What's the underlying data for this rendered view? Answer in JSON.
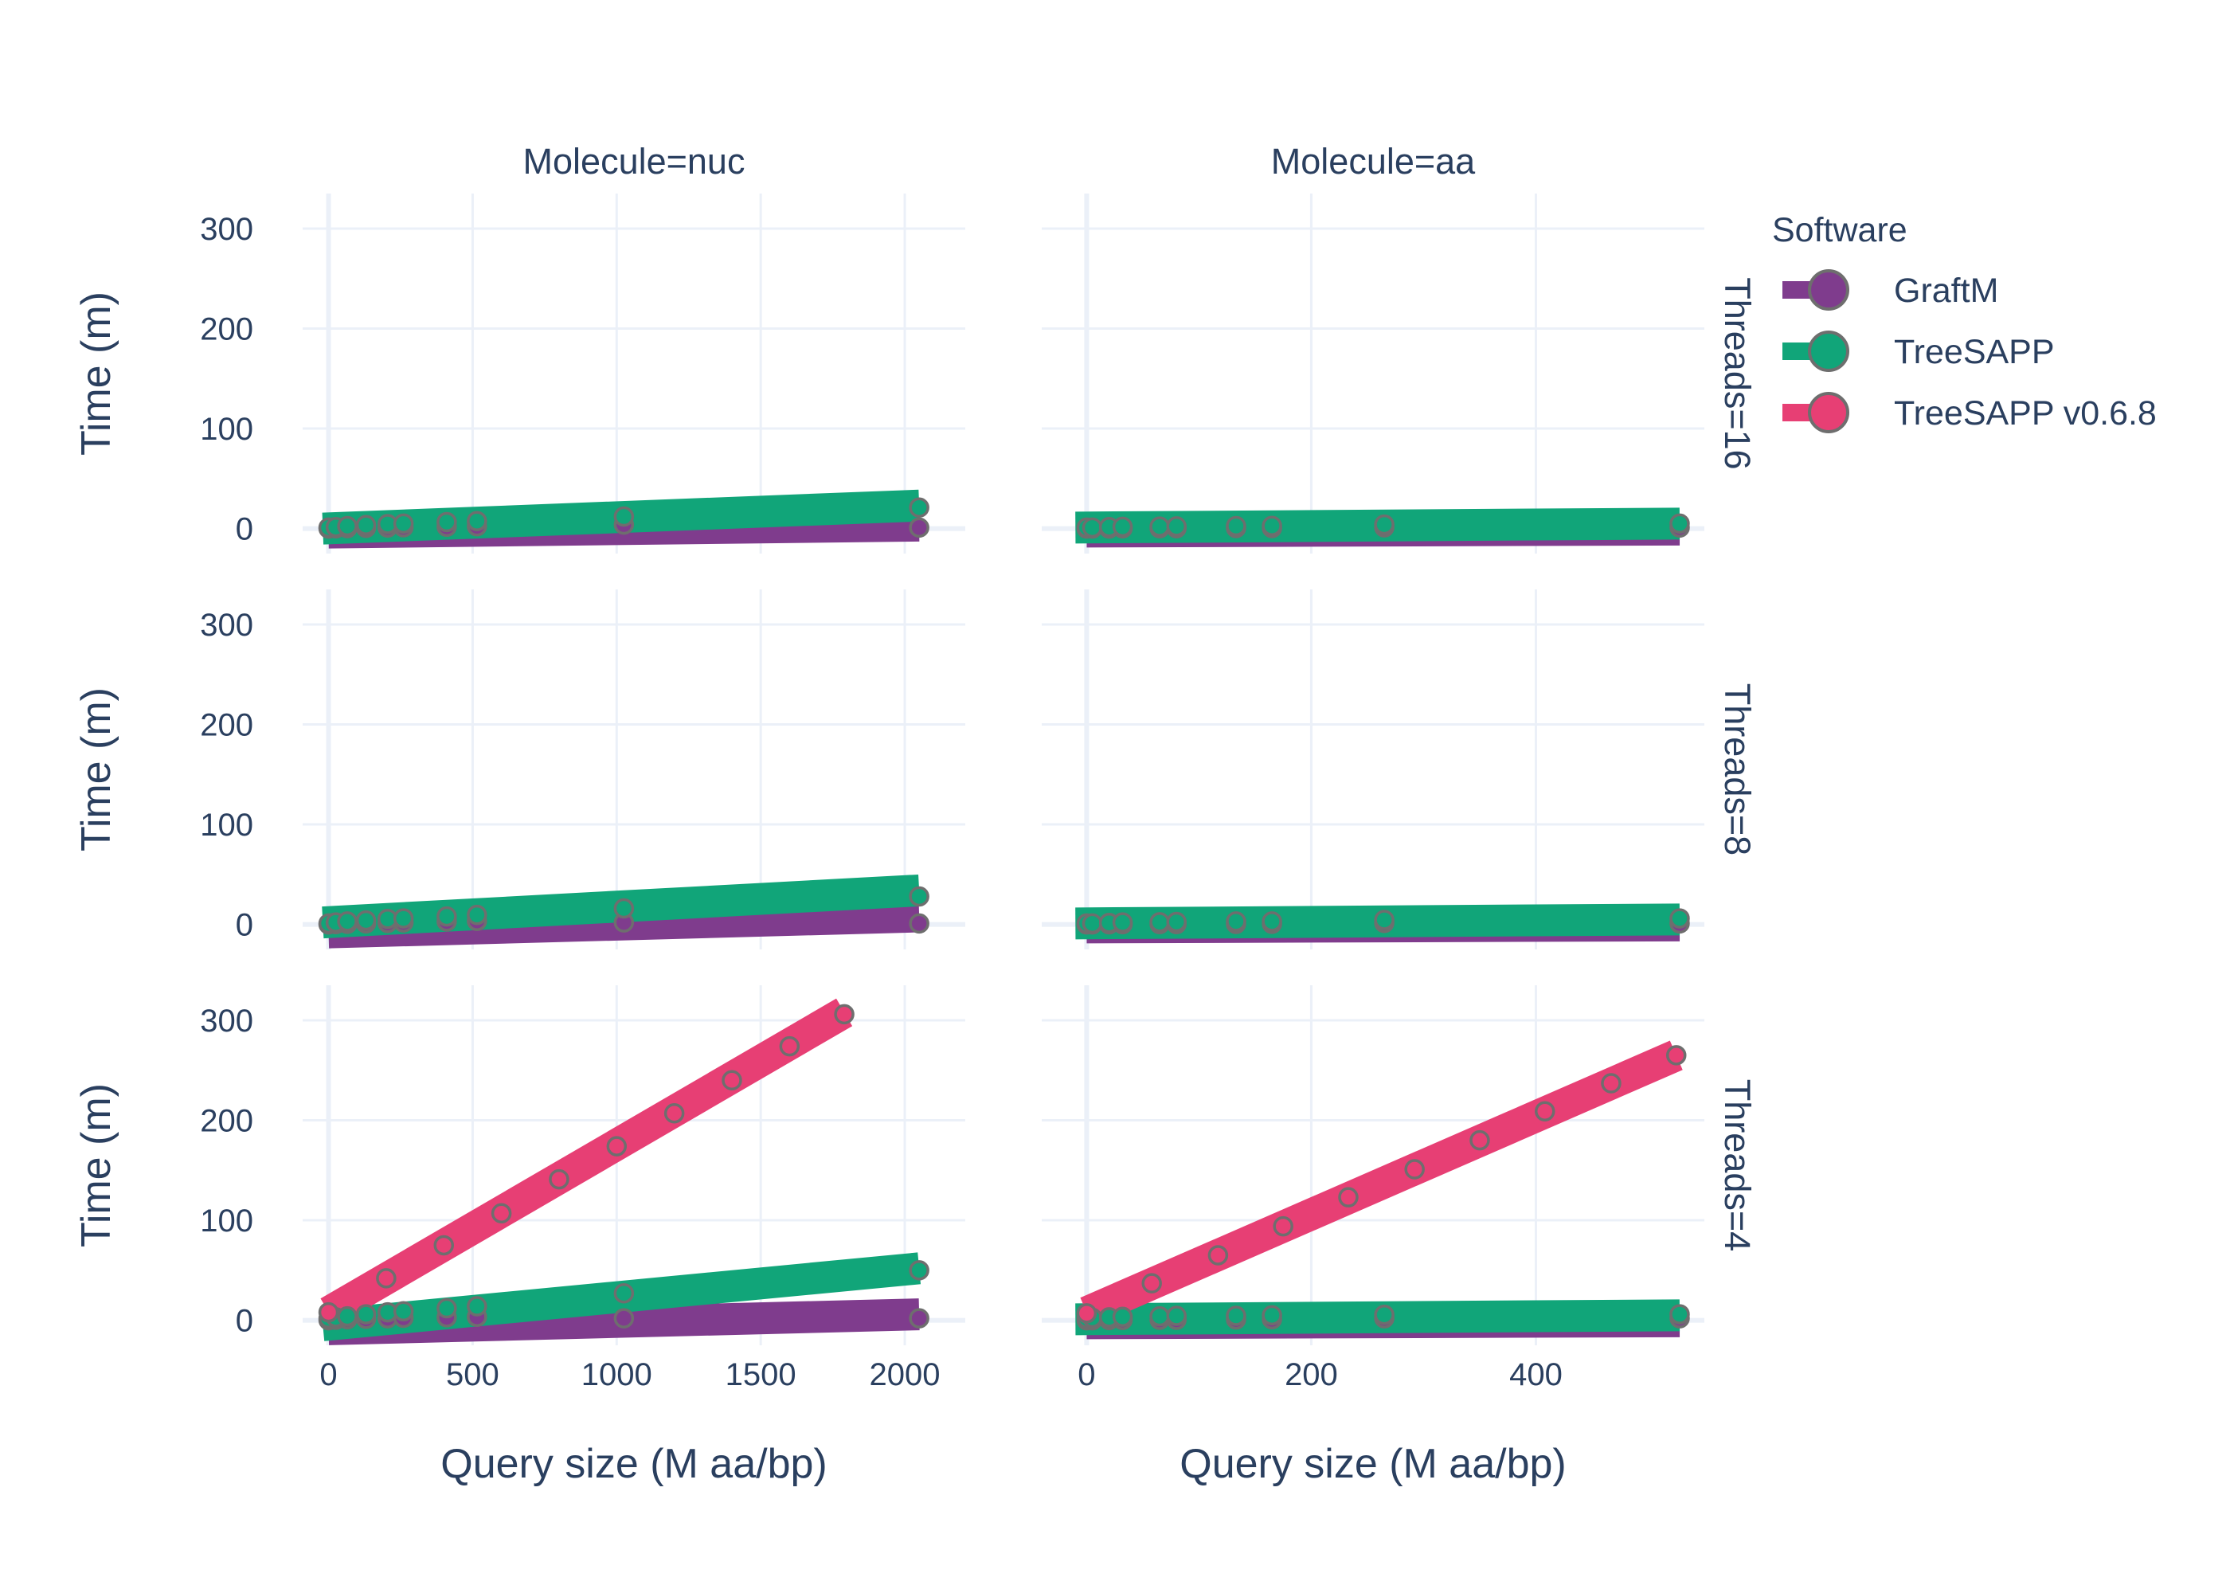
{
  "chart_data": {
    "type": "line",
    "legend": {
      "title": "Software",
      "placement": "top-right",
      "items": [
        {
          "name": "GraftM",
          "color": "#7f3c8d"
        },
        {
          "name": "TreeSAPP",
          "color": "#11a579"
        },
        {
          "name": "TreeSAPP v0.6.8",
          "color": "#e73f74"
        }
      ]
    },
    "marker_outline_color": "#6e6e6e",
    "y_axis_title": "Time (m)",
    "x_axis_title": "Query size (M aa/bp)",
    "ylim": [
      -25,
      335
    ],
    "yticks": [
      0,
      100,
      200,
      300
    ],
    "grid": true,
    "columns": [
      {
        "title": "Molecule=nuc",
        "xlim": [
          -90,
          2210
        ],
        "xticks": [
          0,
          500,
          1000,
          1500,
          2000
        ]
      },
      {
        "title": "Molecule=aa",
        "xlim": [
          -40,
          550
        ],
        "xticks": [
          0,
          200,
          400
        ]
      }
    ],
    "rows": [
      {
        "title": "Threads=16"
      },
      {
        "title": "Threads=8"
      },
      {
        "title": "Threads=4"
      }
    ],
    "panels": [
      {
        "row": 0,
        "col": 0,
        "series": [
          {
            "name": "GraftM",
            "x": [
              0,
              25,
              65,
              130,
              205,
              260,
              410,
              515,
              1025,
              2050
            ],
            "y": [
              0,
              0.2,
              0.4,
              0.7,
              1,
              1.3,
              1.8,
              2.3,
              4,
              1
            ],
            "fit": [
              [
                0,
                -4
              ],
              [
                2050,
                3
              ]
            ]
          },
          {
            "name": "TreeSAPP",
            "x": [
              0,
              25,
              65,
              130,
              205,
              260,
              410,
              515,
              1025,
              2050
            ],
            "y": [
              1,
              1.5,
              2.5,
              3.5,
              4.5,
              5,
              6.5,
              7.5,
              12,
              21
            ],
            "fit": [
              [
                -20,
                0
              ],
              [
                2050,
                23
              ]
            ]
          }
        ]
      },
      {
        "row": 0,
        "col": 1,
        "series": [
          {
            "name": "GraftM",
            "x": [
              0,
              5,
              20,
              32,
              65,
              80,
              133,
              165,
              265,
              528
            ],
            "y": [
              0,
              0,
              0,
              0.2,
              0.3,
              0.3,
              0.5,
              0.5,
              1.2,
              1
            ],
            "fit": [
              [
                0,
                -3
              ],
              [
                528,
                -1
              ]
            ]
          },
          {
            "name": "TreeSAPP",
            "x": [
              0,
              5,
              20,
              32,
              65,
              80,
              133,
              165,
              265,
              528
            ],
            "y": [
              1,
              1,
              1.5,
              1.8,
              2,
              2.2,
              2.5,
              2.7,
              4,
              5
            ],
            "fit": [
              [
                -10,
                1
              ],
              [
                528,
                5
              ]
            ]
          }
        ]
      },
      {
        "row": 1,
        "col": 0,
        "series": [
          {
            "name": "GraftM",
            "x": [
              0,
              25,
              65,
              130,
              205,
              260,
              410,
              515,
              1025,
              2050
            ],
            "y": [
              0,
              0.3,
              0.6,
              1,
              1.5,
              2,
              3,
              3.5,
              2,
              1
            ],
            "fit": [
              [
                0,
                -8
              ],
              [
                2050,
                8
              ]
            ]
          },
          {
            "name": "TreeSAPP",
            "x": [
              0,
              25,
              65,
              130,
              205,
              260,
              410,
              515,
              1025,
              2050
            ],
            "y": [
              1,
              2,
              3,
              4,
              5.5,
              6,
              8,
              9.5,
              16,
              28
            ],
            "fit": [
              [
                -20,
                2
              ],
              [
                2050,
                34
              ]
            ]
          }
        ]
      },
      {
        "row": 1,
        "col": 1,
        "series": [
          {
            "name": "GraftM",
            "x": [
              0,
              5,
              20,
              32,
              65,
              80,
              133,
              165,
              265,
              528
            ],
            "y": [
              0,
              0,
              0.1,
              0.2,
              0.3,
              0.3,
              0.5,
              0.6,
              1.5,
              1
            ],
            "fit": [
              [
                0,
                -3
              ],
              [
                528,
                -1
              ]
            ]
          },
          {
            "name": "TreeSAPP",
            "x": [
              0,
              5,
              20,
              32,
              65,
              80,
              133,
              165,
              265,
              528
            ],
            "y": [
              1,
              1,
              1.5,
              2,
              2.2,
              2.5,
              3,
              3,
              4.5,
              6
            ],
            "fit": [
              [
                -10,
                1
              ],
              [
                528,
                5
              ]
            ]
          }
        ]
      },
      {
        "row": 2,
        "col": 0,
        "series": [
          {
            "name": "GraftM",
            "x": [
              0,
              25,
              65,
              130,
              205,
              260,
              410,
              515,
              1025,
              2050
            ],
            "y": [
              0,
              0.5,
              1,
              1.5,
              2,
              2.5,
              3,
              3.5,
              2,
              2
            ],
            "fit": [
              [
                0,
                -9
              ],
              [
                2050,
                6
              ]
            ]
          },
          {
            "name": "TreeSAPP",
            "x": [
              0,
              25,
              65,
              130,
              205,
              260,
              410,
              515,
              1025,
              2050
            ],
            "y": [
              2,
              3,
              4,
              6,
              8,
              9,
              12,
              14,
              27,
              50
            ],
            "fit": [
              [
                -20,
                -5
              ],
              [
                2050,
                52
              ]
            ]
          },
          {
            "name": "TreeSAPP v0.6.8",
            "x": [
              0,
              200,
              400,
              600,
              800,
              1000,
              1200,
              1400,
              1600,
              1790
            ],
            "y": [
              8,
              42,
              75,
              107,
              141,
              174,
              207,
              240,
              274,
              306
            ],
            "fit": [
              [
                0,
                8
              ],
              [
                1790,
                308
              ]
            ]
          }
        ]
      },
      {
        "row": 2,
        "col": 1,
        "series": [
          {
            "name": "GraftM",
            "x": [
              0,
              5,
              20,
              32,
              65,
              80,
              133,
              165,
              265,
              528
            ],
            "y": [
              0,
              0,
              0.2,
              0.3,
              0.5,
              0.5,
              0.8,
              1,
              2,
              2
            ],
            "fit": [
              [
                0,
                -3
              ],
              [
                528,
                -1
              ]
            ]
          },
          {
            "name": "TreeSAPP",
            "x": [
              0,
              5,
              20,
              32,
              65,
              80,
              133,
              165,
              265,
              528
            ],
            "y": [
              2,
              2.5,
              3,
              3.5,
              4,
              4.5,
              4.5,
              5,
              5.5,
              6
            ],
            "fit": [
              [
                -10,
                1
              ],
              [
                528,
                5
              ]
            ]
          },
          {
            "name": "TreeSAPP v0.6.8",
            "x": [
              0,
              58,
              117,
              175,
              233,
              292,
              350,
              408,
              467,
              525
            ],
            "y": [
              7,
              37,
              65,
              94,
              123,
              151,
              180,
              209,
              237,
              265
            ],
            "fit": [
              [
                0,
                8
              ],
              [
                525,
                265
              ]
            ]
          }
        ]
      }
    ]
  }
}
